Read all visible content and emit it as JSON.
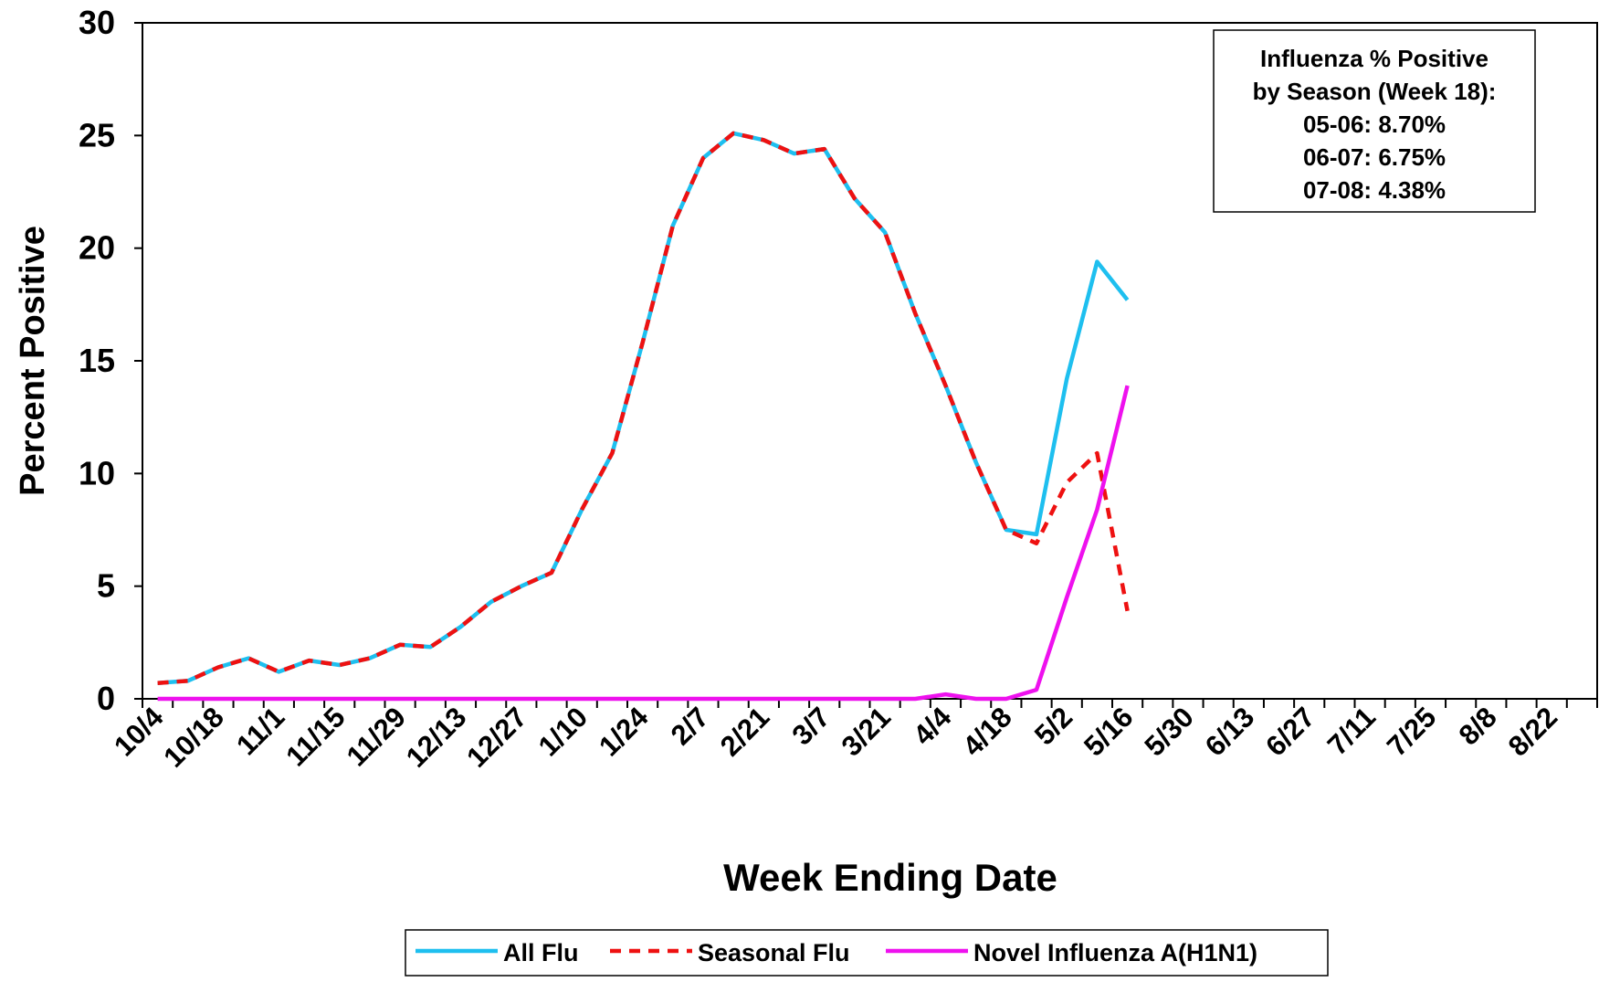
{
  "chart_data": {
    "type": "line",
    "x_label": "Week Ending Date",
    "y_label": "Percent Positive",
    "categories": [
      "10/4",
      null,
      "10/18",
      null,
      "11/1",
      null,
      "11/15",
      null,
      "11/29",
      null,
      "12/13",
      null,
      "12/27",
      null,
      "1/10",
      null,
      "1/24",
      null,
      "2/7",
      null,
      "2/21",
      null,
      "3/7",
      null,
      "3/21",
      null,
      "4/4",
      null,
      "4/18",
      null,
      "5/2",
      null,
      "5/16",
      null,
      "5/30",
      null,
      "6/13",
      null,
      "6/27",
      null,
      "7/11",
      null,
      "7/25",
      null,
      "8/8",
      null,
      "8/22",
      null
    ],
    "series": [
      {
        "name": "All Flu",
        "color": "#1ebfef",
        "dashed": false,
        "values": [
          0.7,
          0.8,
          1.4,
          1.8,
          1.2,
          1.7,
          1.5,
          1.8,
          2.4,
          2.3,
          3.2,
          4.3,
          5.0,
          5.6,
          8.4,
          10.9,
          15.8,
          21.0,
          24.0,
          25.1,
          24.8,
          24.2,
          24.4,
          22.2,
          20.7,
          17.1,
          13.9,
          10.5,
          7.5,
          7.3,
          14.2,
          19.4,
          17.7,
          null,
          null,
          null,
          null,
          null,
          null,
          null,
          null,
          null,
          null,
          null,
          null,
          null,
          null,
          null
        ]
      },
      {
        "name": "Seasonal Flu",
        "color": "#ee1111",
        "dashed": true,
        "values": [
          0.7,
          0.8,
          1.4,
          1.8,
          1.2,
          1.7,
          1.5,
          1.8,
          2.4,
          2.3,
          3.2,
          4.3,
          5.0,
          5.6,
          8.4,
          10.9,
          15.8,
          21.0,
          24.0,
          25.1,
          24.8,
          24.2,
          24.4,
          22.2,
          20.7,
          17.1,
          13.9,
          10.5,
          7.5,
          6.9,
          9.6,
          10.9,
          3.9,
          null,
          null,
          null,
          null,
          null,
          null,
          null,
          null,
          null,
          null,
          null,
          null,
          null,
          null,
          null
        ]
      },
      {
        "name": "Novel Influenza A(H1N1)",
        "color": "#ee11ee",
        "dashed": false,
        "values": [
          0,
          0,
          0,
          0,
          0,
          0,
          0,
          0,
          0,
          0,
          0,
          0,
          0,
          0,
          0,
          0,
          0,
          0,
          0,
          0,
          0,
          0,
          0,
          0,
          0,
          0,
          0.2,
          0,
          0,
          0.4,
          4.5,
          8.4,
          13.9,
          null,
          null,
          null,
          null,
          null,
          null,
          null,
          null,
          null,
          null,
          null,
          null,
          null,
          null,
          null
        ]
      }
    ],
    "ylim": [
      0,
      30
    ],
    "yticks": [
      0,
      5,
      10,
      15,
      20,
      25,
      30
    ],
    "grid": false,
    "annotation": [
      "Influenza % Positive",
      "by Season (Week 18):",
      "05-06:   8.70%",
      "06-07:   6.75%",
      "07-08:   4.38%"
    ],
    "legend": "bottom"
  }
}
